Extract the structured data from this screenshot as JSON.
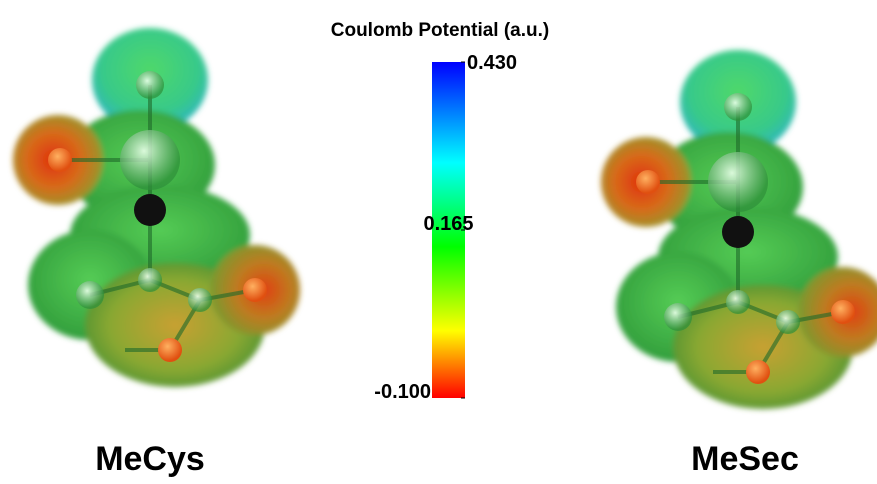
{
  "colorbar": {
    "title": "Coulomb Potential (a.u.)",
    "range": [
      -0.1,
      0.43
    ],
    "ticks": [
      {
        "value": 0.43,
        "label": "0.430"
      },
      {
        "value": 0.165,
        "label": "0.165"
      },
      {
        "value": -0.1,
        "label": "-0.100"
      }
    ]
  },
  "molecules": [
    {
      "label": "MeCys"
    },
    {
      "label": "MeSec"
    }
  ]
}
